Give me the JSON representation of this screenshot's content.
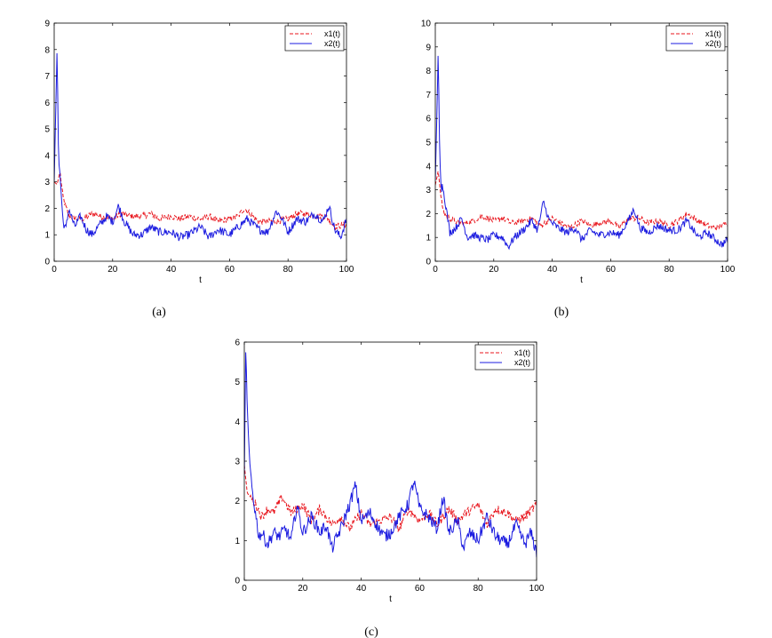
{
  "colors": {
    "x1": "#e8141c",
    "x2": "#1c1ce0",
    "axis": "#000000"
  },
  "chart_data": [
    {
      "panel": "(a)",
      "type": "line",
      "xlabel": "t",
      "ylabel": "",
      "xlim": [
        0,
        100
      ],
      "ylim": [
        0,
        9
      ],
      "xticks": [
        0,
        20,
        40,
        60,
        80,
        100
      ],
      "yticks": [
        0,
        1,
        2,
        3,
        4,
        5,
        6,
        7,
        8,
        9
      ],
      "legend_position": "top-right",
      "grid": false,
      "series": [
        {
          "name": "x1(t)",
          "style": "dashed",
          "color": "#e8141c",
          "x": [
            0,
            1,
            2,
            3,
            5,
            8,
            10,
            13,
            16,
            20,
            23,
            26,
            30,
            33,
            36,
            40,
            43,
            46,
            50,
            53,
            56,
            60,
            63,
            65,
            68,
            70,
            73,
            76,
            80,
            83,
            86,
            90,
            93,
            96,
            100
          ],
          "y": [
            3.0,
            2.9,
            3.4,
            2.4,
            1.7,
            1.6,
            1.6,
            1.8,
            1.7,
            1.6,
            1.8,
            1.7,
            1.7,
            1.8,
            1.6,
            1.7,
            1.6,
            1.7,
            1.6,
            1.7,
            1.5,
            1.6,
            1.7,
            2.0,
            1.7,
            1.5,
            1.5,
            1.5,
            1.6,
            1.8,
            1.8,
            1.7,
            1.7,
            1.3,
            1.4
          ]
        },
        {
          "name": "x2(t)",
          "style": "solid",
          "color": "#1c1ce0",
          "x": [
            0,
            0.5,
            1,
            1.5,
            2,
            2.5,
            3,
            4,
            5,
            7,
            9,
            11,
            13,
            15,
            18,
            20,
            22,
            24,
            27,
            30,
            33,
            36,
            40,
            43,
            46,
            50,
            53,
            56,
            60,
            63,
            66,
            70,
            73,
            76,
            78,
            80,
            83,
            86,
            89,
            92,
            94,
            96,
            98,
            100
          ],
          "y": [
            3.0,
            5.6,
            8.1,
            3.8,
            3.3,
            2.4,
            1.5,
            1.2,
            2.0,
            1.3,
            1.7,
            1.2,
            1.0,
            1.3,
            1.7,
            1.5,
            2.1,
            1.5,
            1.0,
            1.0,
            1.3,
            1.1,
            1.1,
            0.9,
            1.0,
            1.3,
            0.9,
            1.2,
            1.0,
            1.3,
            1.6,
            1.2,
            1.1,
            1.9,
            1.6,
            1.1,
            1.6,
            1.5,
            1.8,
            1.5,
            2.1,
            1.2,
            0.9,
            1.6
          ]
        }
      ]
    },
    {
      "panel": "(b)",
      "type": "line",
      "xlabel": "t",
      "ylabel": "",
      "xlim": [
        0,
        100
      ],
      "ylim": [
        0,
        10
      ],
      "xticks": [
        0,
        20,
        40,
        60,
        80,
        100
      ],
      "yticks": [
        0,
        1,
        2,
        3,
        4,
        5,
        6,
        7,
        8,
        9,
        10
      ],
      "legend_position": "top-right",
      "grid": false,
      "series": [
        {
          "name": "x1(t)",
          "style": "dashed",
          "color": "#e8141c",
          "x": [
            0,
            1,
            2,
            3,
            5,
            8,
            10,
            13,
            16,
            20,
            23,
            26,
            30,
            33,
            36,
            40,
            43,
            46,
            50,
            53,
            56,
            60,
            63,
            66,
            70,
            73,
            76,
            80,
            83,
            86,
            90,
            93,
            96,
            100
          ],
          "y": [
            3.2,
            3.8,
            2.6,
            2.0,
            1.8,
            1.6,
            1.6,
            1.7,
            1.9,
            1.7,
            1.8,
            1.6,
            1.7,
            1.8,
            1.5,
            1.8,
            1.6,
            1.4,
            1.7,
            1.5,
            1.6,
            1.7,
            1.4,
            1.8,
            1.8,
            1.6,
            1.7,
            1.5,
            1.7,
            2.0,
            1.7,
            1.5,
            1.4,
            1.6
          ]
        },
        {
          "name": "x2(t)",
          "style": "solid",
          "color": "#1c1ce0",
          "x": [
            0,
            0.5,
            1,
            1.5,
            2,
            2.5,
            3,
            4,
            5,
            7,
            9,
            11,
            13,
            15,
            18,
            20,
            23,
            25,
            27,
            30,
            33,
            35,
            37,
            39,
            42,
            45,
            48,
            50,
            53,
            56,
            60,
            63,
            66,
            68,
            70,
            73,
            76,
            80,
            83,
            86,
            90,
            93,
            96,
            98,
            100
          ],
          "y": [
            3.4,
            6.0,
            8.9,
            4.5,
            3.0,
            3.2,
            2.8,
            2.0,
            1.2,
            1.4,
            1.8,
            1.0,
            1.1,
            1.0,
            0.9,
            1.1,
            1.0,
            0.6,
            1.0,
            1.3,
            1.7,
            1.3,
            2.5,
            1.7,
            1.4,
            1.2,
            1.4,
            0.9,
            1.3,
            1.1,
            1.2,
            1.1,
            1.7,
            2.2,
            1.4,
            1.2,
            1.5,
            1.3,
            1.3,
            1.7,
            1.0,
            1.2,
            0.9,
            0.7,
            0.9
          ]
        }
      ]
    },
    {
      "panel": "(c)",
      "type": "line",
      "xlabel": "t",
      "ylabel": "",
      "xlim": [
        0,
        100
      ],
      "ylim": [
        0,
        6
      ],
      "xticks": [
        0,
        20,
        40,
        60,
        80,
        100
      ],
      "yticks": [
        0,
        1,
        2,
        3,
        4,
        5,
        6
      ],
      "legend_position": "top-right",
      "grid": false,
      "series": [
        {
          "name": "x1(t)",
          "style": "dashed",
          "color": "#e8141c",
          "x": [
            0,
            1,
            2,
            4,
            6,
            8,
            10,
            13,
            16,
            20,
            23,
            26,
            30,
            33,
            36,
            40,
            43,
            46,
            50,
            53,
            56,
            60,
            63,
            66,
            70,
            73,
            76,
            80,
            83,
            86,
            90,
            93,
            96,
            100
          ],
          "y": [
            2.9,
            2.2,
            2.1,
            1.9,
            1.6,
            1.8,
            1.7,
            2.1,
            1.7,
            1.9,
            1.5,
            1.8,
            1.4,
            1.6,
            1.3,
            1.7,
            1.4,
            1.5,
            1.6,
            1.3,
            1.8,
            1.5,
            1.7,
            1.4,
            1.8,
            1.5,
            1.7,
            1.9,
            1.4,
            1.8,
            1.7,
            1.5,
            1.6,
            1.9
          ]
        },
        {
          "name": "x2(t)",
          "style": "solid",
          "color": "#1c1ce0",
          "x": [
            0,
            0.5,
            1,
            1.5,
            2,
            3,
            4,
            5,
            6,
            8,
            10,
            12,
            14,
            16,
            18,
            20,
            23,
            26,
            28,
            30,
            33,
            36,
            38,
            40,
            43,
            46,
            48,
            50,
            53,
            56,
            58,
            60,
            63,
            66,
            68,
            70,
            73,
            75,
            77,
            80,
            83,
            86,
            90,
            93,
            96,
            98,
            100
          ],
          "y": [
            2.6,
            5.9,
            4.4,
            3.5,
            2.8,
            2.1,
            1.6,
            1.1,
            1.2,
            0.9,
            1.2,
            1.1,
            1.3,
            1.0,
            1.9,
            1.2,
            1.6,
            1.2,
            1.4,
            0.8,
            1.3,
            1.9,
            2.4,
            1.5,
            1.7,
            1.3,
            1.1,
            1.2,
            1.6,
            1.9,
            2.5,
            1.8,
            1.6,
            1.3,
            2.1,
            1.2,
            1.5,
            0.8,
            1.2,
            1.0,
            1.6,
            1.1,
            0.9,
            1.4,
            0.9,
            1.2,
            0.7
          ]
        }
      ]
    }
  ]
}
